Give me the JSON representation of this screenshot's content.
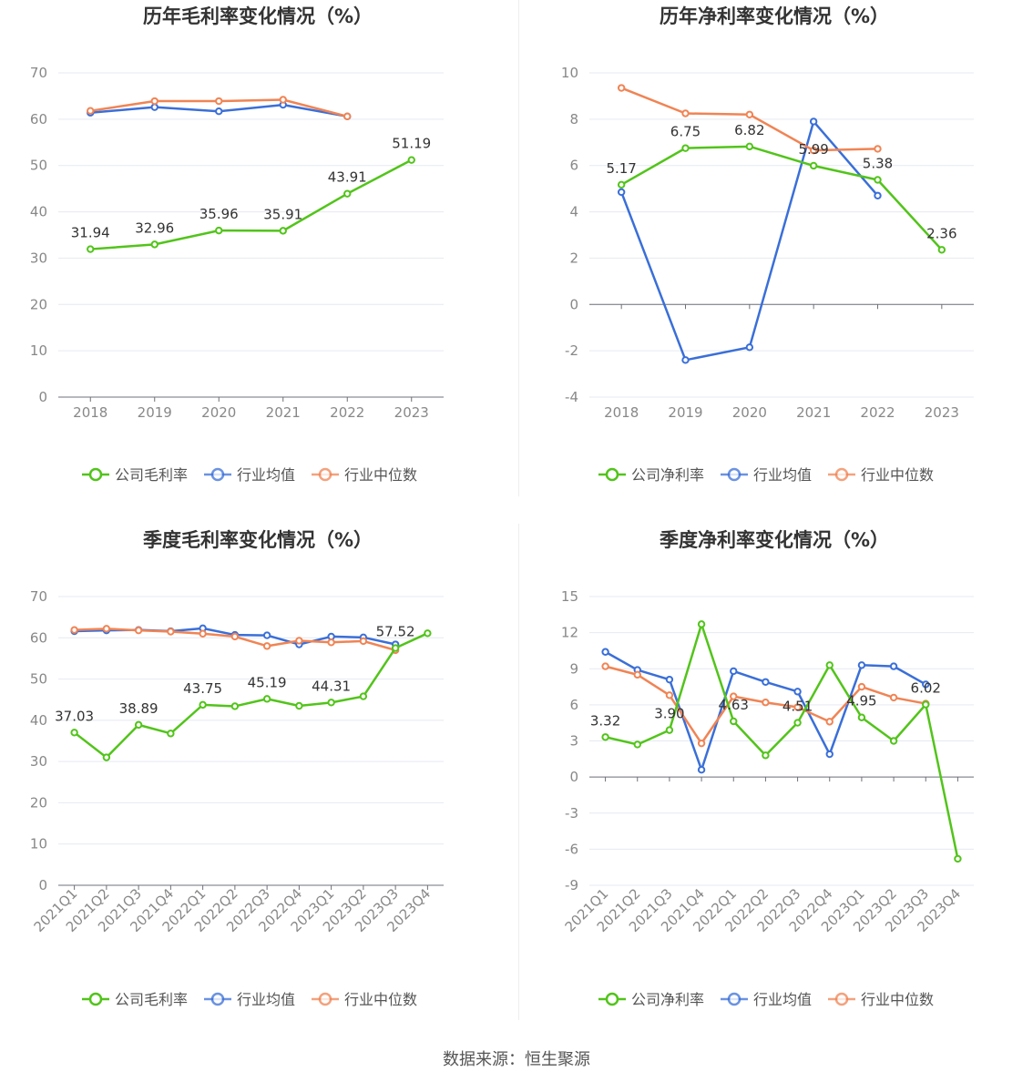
{
  "source_text": "数据来源：恒生聚源",
  "colors": {
    "company": "#52c41a",
    "avg": "#3a6fd8",
    "median": "#f08454"
  },
  "chart_data": [
    {
      "type": "line",
      "title": "历年毛利率变化情况（%）",
      "categories": [
        "2018",
        "2019",
        "2020",
        "2021",
        "2022",
        "2023"
      ],
      "ylim": [
        0,
        70
      ],
      "yticks": [
        0,
        10,
        20,
        30,
        40,
        50,
        60,
        70
      ],
      "ytick_labels": [
        "0",
        "10",
        "20",
        "30",
        "40",
        "50",
        "60",
        "70"
      ],
      "rotate_x": false,
      "legend": [
        "公司毛利率",
        "行业均值",
        "行业中位数"
      ],
      "series": [
        {
          "name": "公司毛利率",
          "key": "company",
          "values": [
            31.94,
            32.96,
            35.96,
            35.91,
            43.91,
            51.19
          ],
          "labels": [
            "31.94",
            "32.96",
            "35.96",
            "35.91",
            "43.91",
            "51.19"
          ]
        },
        {
          "name": "行业均值",
          "key": "avg",
          "values": [
            61.4,
            62.6,
            61.7,
            63.1,
            60.6,
            null
          ]
        },
        {
          "name": "行业中位数",
          "key": "median",
          "values": [
            61.8,
            63.9,
            63.9,
            64.2,
            60.6,
            null
          ]
        }
      ]
    },
    {
      "type": "line",
      "title": "历年净利率变化情况（%）",
      "categories": [
        "2018",
        "2019",
        "2020",
        "2021",
        "2022",
        "2023"
      ],
      "ylim": [
        -4,
        10
      ],
      "yticks": [
        -4,
        -2,
        0,
        2,
        4,
        6,
        8,
        10
      ],
      "ytick_labels": [
        "-4",
        "-2",
        "0",
        "2",
        "4",
        "6",
        "8",
        "10"
      ],
      "rotate_x": false,
      "legend": [
        "公司净利率",
        "行业均值",
        "行业中位数"
      ],
      "series": [
        {
          "name": "公司净利率",
          "key": "company",
          "values": [
            5.17,
            6.75,
            6.82,
            5.99,
            5.38,
            2.36
          ],
          "labels": [
            "5.17",
            "6.75",
            "6.82",
            "5.99",
            "5.38",
            "2.36"
          ]
        },
        {
          "name": "行业均值",
          "key": "avg",
          "values": [
            4.85,
            -2.4,
            -1.85,
            7.9,
            4.7,
            null
          ]
        },
        {
          "name": "行业中位数",
          "key": "median",
          "values": [
            9.35,
            8.25,
            8.2,
            6.65,
            6.72,
            null
          ]
        }
      ]
    },
    {
      "type": "line",
      "title": "季度毛利率变化情况（%）",
      "categories": [
        "2021Q1",
        "2021Q2",
        "2021Q3",
        "2021Q4",
        "2022Q1",
        "2022Q2",
        "2022Q3",
        "2022Q4",
        "2023Q1",
        "2023Q2",
        "2023Q3",
        "2023Q4"
      ],
      "ylim": [
        0,
        70
      ],
      "yticks": [
        0,
        10,
        20,
        30,
        40,
        50,
        60,
        70
      ],
      "ytick_labels": [
        "0",
        "10",
        "20",
        "30",
        "40",
        "50",
        "60",
        "70"
      ],
      "rotate_x": true,
      "legend": [
        "公司毛利率",
        "行业均值",
        "行业中位数"
      ],
      "series": [
        {
          "name": "公司毛利率",
          "key": "company",
          "values": [
            37.03,
            31.0,
            38.89,
            36.8,
            43.75,
            43.4,
            45.19,
            43.5,
            44.31,
            45.8,
            57.52,
            61.1
          ],
          "labels": [
            "37.03",
            "",
            "38.89",
            "",
            "43.75",
            "",
            "45.19",
            "",
            "44.31",
            "",
            "57.52",
            ""
          ]
        },
        {
          "name": "行业均值",
          "key": "avg",
          "values": [
            61.6,
            61.8,
            61.9,
            61.6,
            62.3,
            60.7,
            60.6,
            58.4,
            60.3,
            60.1,
            58.4,
            null
          ]
        },
        {
          "name": "行业中位数",
          "key": "median",
          "values": [
            61.9,
            62.2,
            61.8,
            61.5,
            61.0,
            60.3,
            58.0,
            59.3,
            58.9,
            59.2,
            57.0,
            null
          ]
        }
      ]
    },
    {
      "type": "line",
      "title": "季度净利率变化情况（%）",
      "categories": [
        "2021Q1",
        "2021Q2",
        "2021Q3",
        "2021Q4",
        "2022Q1",
        "2022Q2",
        "2022Q3",
        "2022Q4",
        "2023Q1",
        "2023Q2",
        "2023Q3",
        "2023Q4"
      ],
      "ylim": [
        -9,
        15
      ],
      "yticks": [
        -9,
        -6,
        -3,
        0,
        3,
        6,
        9,
        12,
        15
      ],
      "ytick_labels": [
        "-9",
        "-6",
        "-3",
        "0",
        "3",
        "6",
        "9",
        "12",
        "15"
      ],
      "rotate_x": true,
      "legend": [
        "公司净利率",
        "行业均值",
        "行业中位数"
      ],
      "series": [
        {
          "name": "公司净利率",
          "key": "company",
          "values": [
            3.32,
            2.7,
            3.9,
            12.7,
            4.63,
            1.8,
            4.51,
            9.3,
            4.95,
            3.0,
            6.02,
            -6.8
          ],
          "labels": [
            "3.32",
            "",
            "3.90",
            "",
            "4.63",
            "",
            "4.51",
            "",
            "4.95",
            "",
            "6.02",
            ""
          ]
        },
        {
          "name": "行业均值",
          "key": "avg",
          "values": [
            10.4,
            8.9,
            8.1,
            0.6,
            8.8,
            7.9,
            7.1,
            1.9,
            9.3,
            9.2,
            7.7,
            null
          ]
        },
        {
          "name": "行业中位数",
          "key": "median",
          "values": [
            9.2,
            8.5,
            6.8,
            2.8,
            6.7,
            6.2,
            5.8,
            4.6,
            7.5,
            6.6,
            6.1,
            null
          ]
        }
      ]
    }
  ]
}
